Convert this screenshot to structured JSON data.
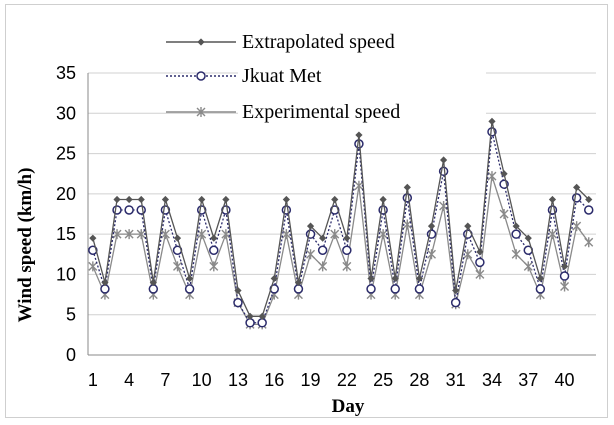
{
  "chart_data": {
    "type": "line",
    "title": "",
    "xlabel": "Day",
    "ylabel": "Wind speed (km/h)",
    "ylim": [
      0,
      35
    ],
    "yticks": [
      "0",
      "5",
      "10",
      "15",
      "20",
      "25",
      "30",
      "35"
    ],
    "xticks": [
      "1",
      "4",
      "7",
      "10",
      "13",
      "16",
      "19",
      "22",
      "25",
      "28",
      "31",
      "34",
      "37",
      "40"
    ],
    "grid": "horizontal",
    "legend_position": "top",
    "x": [
      1,
      2,
      3,
      4,
      5,
      6,
      7,
      8,
      9,
      10,
      11,
      12,
      13,
      14,
      15,
      16,
      17,
      18,
      19,
      20,
      21,
      22,
      23,
      24,
      25,
      26,
      27,
      28,
      29,
      30,
      31,
      32,
      33,
      34,
      35,
      36,
      37,
      38,
      39,
      40,
      41,
      42
    ],
    "series": [
      {
        "name": "Extrapolated speed",
        "color": "#555555",
        "marker": "diamond",
        "dash": "solid",
        "values": [
          14.5,
          9,
          19.3,
          19.3,
          19.3,
          9,
          19.3,
          14.5,
          9.5,
          19.3,
          14.5,
          19.3,
          8,
          4.8,
          4.8,
          9.5,
          19.3,
          9,
          16,
          14.5,
          19.3,
          14.5,
          27.3,
          9.5,
          19.3,
          9.5,
          20.8,
          9.5,
          16,
          24.2,
          8,
          16,
          12.8,
          29,
          22.5,
          16,
          14.5,
          9.5,
          19.3,
          11,
          20.8,
          19.3
        ]
      },
      {
        "name": "Jkuat Met",
        "color": "#2b2b6b",
        "marker": "circle",
        "dash": "dotted",
        "values": [
          13,
          8.2,
          18,
          18,
          18,
          8.2,
          18,
          13,
          8.2,
          18,
          13,
          18,
          6.5,
          4,
          4,
          8.2,
          18,
          8.2,
          15,
          13,
          18,
          13,
          26.2,
          8.2,
          18,
          8.2,
          19.5,
          8.2,
          15,
          22.8,
          6.5,
          15,
          11.5,
          27.7,
          21.2,
          15,
          13,
          8.2,
          18,
          9.8,
          19.5,
          18
        ]
      },
      {
        "name": "Experimental speed",
        "color": "#8a8a8a",
        "marker": "star",
        "dash": "solid",
        "values": [
          11,
          7.5,
          15,
          15,
          15,
          7.5,
          15,
          11,
          7.5,
          15,
          11,
          15,
          6.5,
          3.8,
          3.8,
          7.5,
          15,
          7.5,
          12.5,
          11,
          15,
          11,
          21,
          7.5,
          15,
          7.5,
          16.2,
          7.5,
          12.5,
          18.5,
          6.3,
          12.5,
          10,
          22.2,
          17.5,
          12.5,
          11,
          7.5,
          15,
          8.5,
          16,
          14
        ]
      }
    ]
  }
}
